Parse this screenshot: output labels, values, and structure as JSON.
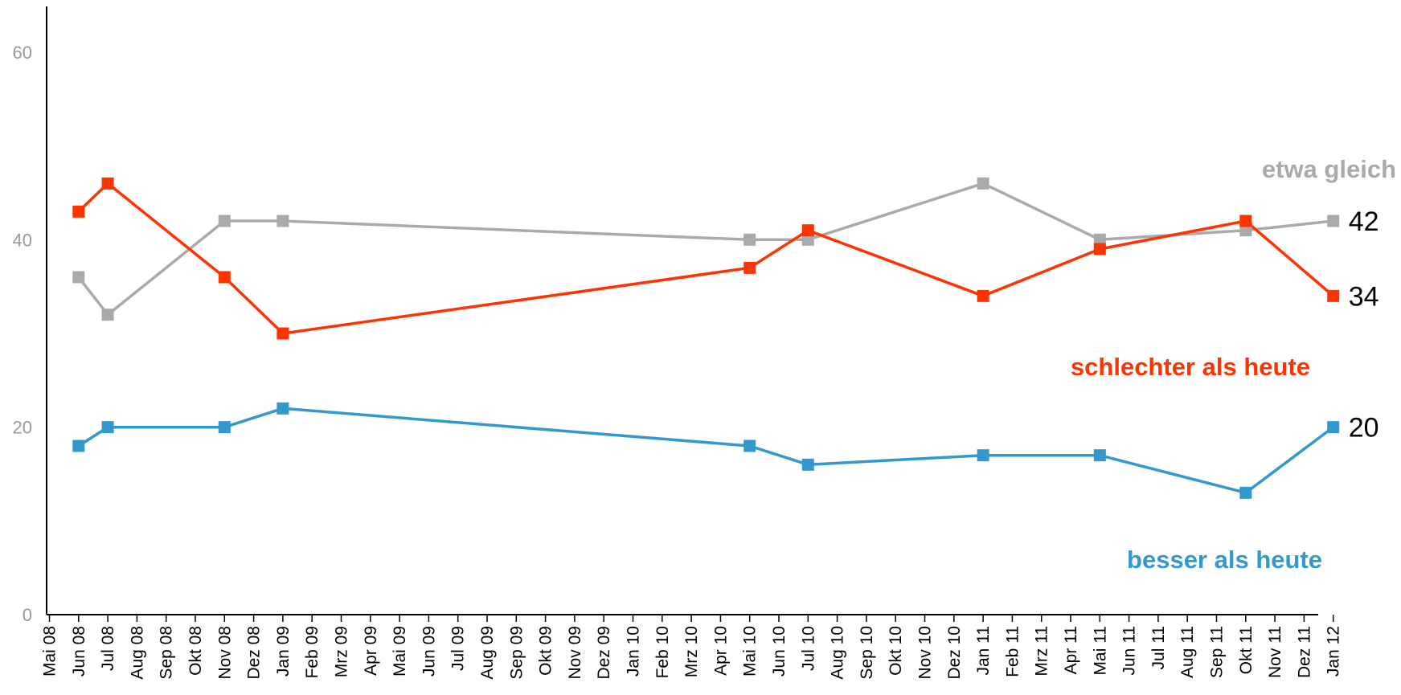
{
  "chart_data": {
    "type": "line",
    "ylim": [
      0,
      60
    ],
    "yticks": [
      0,
      20,
      40,
      60
    ],
    "grid": false,
    "categories": [
      "Mai 08",
      "Jun 08",
      "Jul 08",
      "Aug 08",
      "Sep 08",
      "Okt 08",
      "Nov 08",
      "Dez 08",
      "Jan 09",
      "Feb 09",
      "Mrz 09",
      "Apr 09",
      "Mai 09",
      "Jun 09",
      "Jul 09",
      "Aug 09",
      "Sep 09",
      "Okt 09",
      "Nov 09",
      "Dez 09",
      "Jan 10",
      "Feb 10",
      "Mrz 10",
      "Apr 10",
      "Mai 10",
      "Jun 10",
      "Jul 10",
      "Aug 10",
      "Sep 10",
      "Okt 10",
      "Nov 10",
      "Dez 10",
      "Jan 11",
      "Feb 11",
      "Mrz 11",
      "Apr 11",
      "Mai 11",
      "Jun 11",
      "Jul 11",
      "Aug 11",
      "Sep 11",
      "Okt 11",
      "Nov 11",
      "Dez 11",
      "Jan 12"
    ],
    "series": [
      {
        "name": "etwa gleich",
        "color": "#aaaaaa",
        "points": [
          {
            "x": "Jun 08",
            "y": 36
          },
          {
            "x": "Jul 08",
            "y": 32
          },
          {
            "x": "Nov 08",
            "y": 42
          },
          {
            "x": "Jan 09",
            "y": 42
          },
          {
            "x": "Mai 10",
            "y": 40
          },
          {
            "x": "Jul 10",
            "y": 40
          },
          {
            "x": "Jan 11",
            "y": 46
          },
          {
            "x": "Mai 11",
            "y": 40
          },
          {
            "x": "Okt 11",
            "y": 41
          },
          {
            "x": "Jan 12",
            "y": 42
          }
        ],
        "end_label": "42"
      },
      {
        "name": "schlechter als heute",
        "color": "#ff3300",
        "points": [
          {
            "x": "Jun 08",
            "y": 43
          },
          {
            "x": "Jul 08",
            "y": 46
          },
          {
            "x": "Nov 08",
            "y": 36
          },
          {
            "x": "Jan 09",
            "y": 30
          },
          {
            "x": "Mai 10",
            "y": 37
          },
          {
            "x": "Jul 10",
            "y": 41
          },
          {
            "x": "Jan 11",
            "y": 34
          },
          {
            "x": "Mai 11",
            "y": 39
          },
          {
            "x": "Okt 11",
            "y": 42
          },
          {
            "x": "Jan 12",
            "y": 34
          }
        ],
        "end_label": "34"
      },
      {
        "name": "besser als heute",
        "color": "#3399cc",
        "points": [
          {
            "x": "Jun 08",
            "y": 18
          },
          {
            "x": "Jul 08",
            "y": 20
          },
          {
            "x": "Nov 08",
            "y": 20
          },
          {
            "x": "Jan 09",
            "y": 22
          },
          {
            "x": "Mai 10",
            "y": 18
          },
          {
            "x": "Jul 10",
            "y": 16
          },
          {
            "x": "Jan 11",
            "y": 17
          },
          {
            "x": "Mai 11",
            "y": 17
          },
          {
            "x": "Okt 11",
            "y": 13
          },
          {
            "x": "Jan 12",
            "y": 20
          }
        ],
        "end_label": "20"
      }
    ]
  }
}
